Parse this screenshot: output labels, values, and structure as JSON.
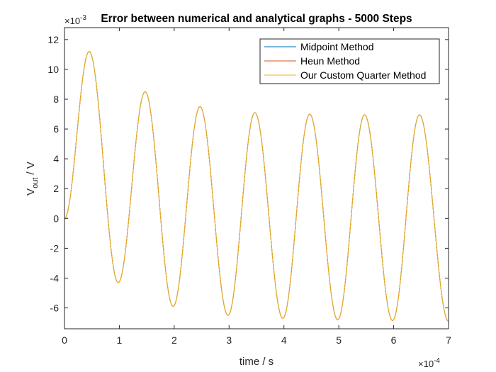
{
  "chart_data": {
    "type": "line",
    "title": "Error between numerical and analytical graphs - 5000 Steps",
    "xlabel": "time / s",
    "ylabel_main": "V",
    "ylabel_sub": "out",
    "ylabel_suffix": " / V",
    "x_exponent_base": "×10",
    "x_exponent_power": "-4",
    "y_exponent_base": "×10",
    "y_exponent_power": "-3",
    "xlim": [
      0,
      7
    ],
    "ylim": [
      -7.4,
      12.8
    ],
    "x_scale_label": "×10^-4",
    "y_scale_label": "×10^-3",
    "xticks": [
      0,
      1,
      2,
      3,
      4,
      5,
      6,
      7
    ],
    "xtick_labels": [
      "0",
      "1",
      "2",
      "3",
      "4",
      "5",
      "6",
      "7"
    ],
    "yticks": [
      -6,
      -4,
      -2,
      0,
      2,
      4,
      6,
      8,
      10,
      12
    ],
    "ytick_labels": [
      "-6",
      "-4",
      "-2",
      "0",
      "2",
      "4",
      "6",
      "8",
      "10",
      "12"
    ],
    "legend_position": "top-right",
    "series": [
      {
        "name": "Midpoint Method",
        "color": "#0072BD",
        "visible_on_top": false
      },
      {
        "name": "Heun Method",
        "color": "#D95319",
        "visible_on_top": false
      },
      {
        "name": "Our Custom Quarter Method",
        "color": "#EDB120",
        "visible_on_top": true
      }
    ],
    "extrema": {
      "x": [
        0.0,
        0.45,
        0.98,
        1.47,
        1.98,
        2.47,
        2.98,
        3.47,
        3.98,
        4.47,
        4.98,
        5.47,
        5.98,
        6.47,
        7.0
      ],
      "y": [
        0.0,
        11.2,
        -4.3,
        8.5,
        -5.9,
        7.5,
        -6.5,
        7.1,
        -6.7,
        7.0,
        -6.8,
        6.95,
        -6.85,
        6.95,
        -6.9
      ]
    },
    "x_end": 7.0
  }
}
